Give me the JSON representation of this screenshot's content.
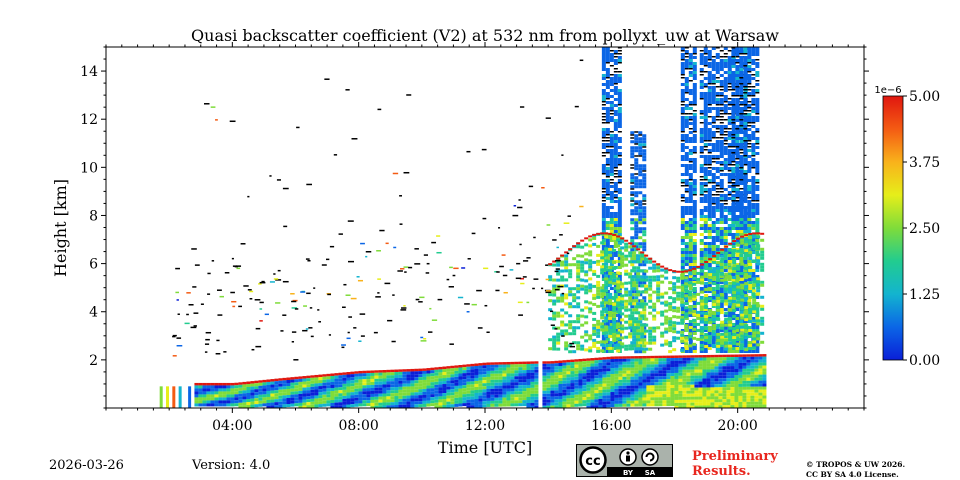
{
  "chart_data": {
    "type": "heatmap",
    "title": "Quasi backscatter coefficient (V2) at 532 nm from pollyxt_uw at Warsaw",
    "xlabel": "Time [UTC]",
    "ylabel": "Height [km]",
    "xlim_hours": [
      0,
      24
    ],
    "ylim_km": [
      0,
      15
    ],
    "xticks": [
      {
        "value": 4,
        "label": "04:00"
      },
      {
        "value": 8,
        "label": "08:00"
      },
      {
        "value": 12,
        "label": "12:00"
      },
      {
        "value": 16,
        "label": "16:00"
      },
      {
        "value": 20,
        "label": "20:00"
      }
    ],
    "yticks": [
      {
        "value": 2,
        "label": "2"
      },
      {
        "value": 4,
        "label": "4"
      },
      {
        "value": 6,
        "label": "6"
      },
      {
        "value": 8,
        "label": "8"
      },
      {
        "value": 10,
        "label": "10"
      },
      {
        "value": 12,
        "label": "12"
      },
      {
        "value": 14,
        "label": "14"
      }
    ],
    "colorbar": {
      "scale_label": "1e−6",
      "min": 0.0,
      "max": 5.0,
      "ticks": [
        {
          "value": 0.0,
          "label": "0.00"
        },
        {
          "value": 1.25,
          "label": "1.25"
        },
        {
          "value": 2.5,
          "label": "2.50"
        },
        {
          "value": 3.75,
          "label": "3.75"
        },
        {
          "value": 5.0,
          "label": "5.00"
        }
      ],
      "colormap": [
        "#0a1fd8",
        "#0b66e6",
        "#13b4cf",
        "#22cc8f",
        "#7fdc3a",
        "#e6ee1a",
        "#f9b21b",
        "#f45b13",
        "#e0170f"
      ]
    },
    "data_gaps_hours": [
      [
        13.6,
        13.8
      ]
    ],
    "boundary_layer_top_km": [
      {
        "t": 2.8,
        "h": 1.0
      },
      {
        "t": 4.0,
        "h": 1.0
      },
      {
        "t": 5.5,
        "h": 1.2
      },
      {
        "t": 8.0,
        "h": 1.5
      },
      {
        "t": 10.0,
        "h": 1.6
      },
      {
        "t": 12.0,
        "h": 1.85
      },
      {
        "t": 13.6,
        "h": 1.9
      },
      {
        "t": 14.0,
        "h": 1.9
      },
      {
        "t": 16.0,
        "h": 2.1
      },
      {
        "t": 20.8,
        "h": 2.2
      }
    ],
    "aerosol_columns": [
      {
        "t_start": 15.7,
        "t_end": 16.3,
        "h_top": 15.0
      },
      {
        "t_start": 16.6,
        "t_end": 17.0,
        "h_top": 11.5
      },
      {
        "t_start": 18.2,
        "t_end": 18.6,
        "h_top": 15.0
      },
      {
        "t_start": 18.8,
        "t_end": 20.2,
        "h_top": 15.0
      },
      {
        "t_start": 19.8,
        "t_end": 20.6,
        "h_top": 15.0
      }
    ]
  },
  "footer": {
    "date": "2026-03-26",
    "version": "Version: 4.0",
    "preliminary_line1": "Preliminary",
    "preliminary_line2": "Results.",
    "copyright_line1": "© TROPOS & UW 2026.",
    "copyright_line2": "CC BY SA 4.0 License.",
    "cc_badge": {
      "main": "cc",
      "by": "BY",
      "sa": "SA"
    }
  }
}
